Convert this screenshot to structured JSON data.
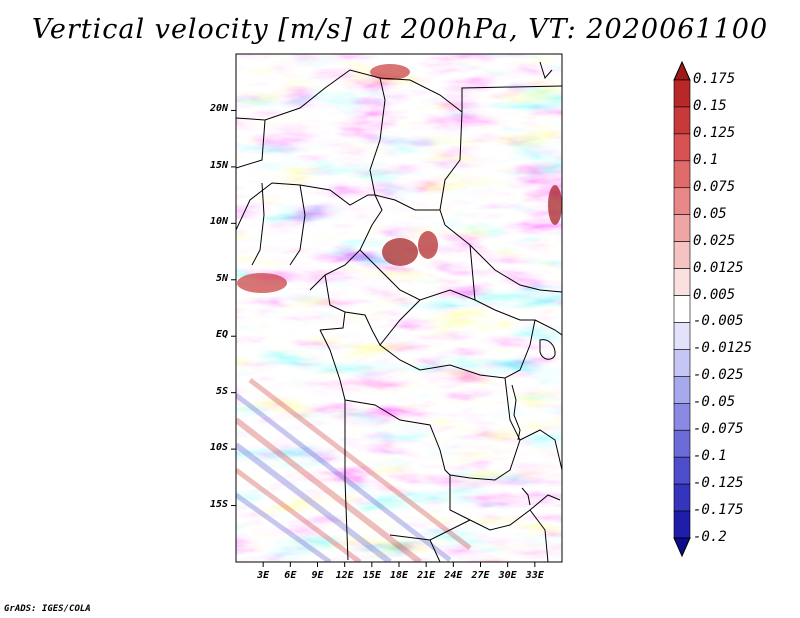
{
  "title": "Vertical velocity [m/s] at 200hPa, VT: 2020061100",
  "footer": "GrADS: IGES/COLA",
  "map": {
    "field": "vertical velocity",
    "level": "200hPa",
    "valid_time": "2020061100",
    "lat_range": [
      -20,
      25
    ],
    "lon_range": [
      0,
      36
    ],
    "lat_ticks": [
      "20N",
      "15N",
      "10N",
      "5N",
      "EQ",
      "5S",
      "10S",
      "15S"
    ],
    "lat_values": [
      20,
      15,
      10,
      5,
      0,
      -5,
      -10,
      -15
    ],
    "lon_ticks": [
      "3E",
      "6E",
      "9E",
      "12E",
      "15E",
      "18E",
      "21E",
      "24E",
      "27E",
      "30E",
      "33E"
    ],
    "lon_values": [
      3,
      6,
      9,
      12,
      15,
      18,
      21,
      24,
      27,
      30,
      33
    ]
  },
  "colorbar": {
    "labels": [
      "0.175",
      "0.15",
      "0.125",
      "0.1",
      "0.075",
      "0.05",
      "0.025",
      "0.0125",
      "0.005",
      "-0.005",
      "-0.0125",
      "-0.025",
      "-0.05",
      "-0.075",
      "-0.1",
      "-0.125",
      "-0.175",
      "-0.2"
    ],
    "colors": [
      "#a01818",
      "#b82828",
      "#c83a3a",
      "#d85252",
      "#e06b6b",
      "#e88888",
      "#f0a5a5",
      "#f6c3c3",
      "#fbe0e0",
      "#ffffff",
      "#e2e2fb",
      "#c6c6f4",
      "#a8a8ec",
      "#8a8ae2",
      "#6c6cd8",
      "#4e4ecc",
      "#3434bc",
      "#1e1eaa",
      "#0c0c8c"
    ]
  }
}
